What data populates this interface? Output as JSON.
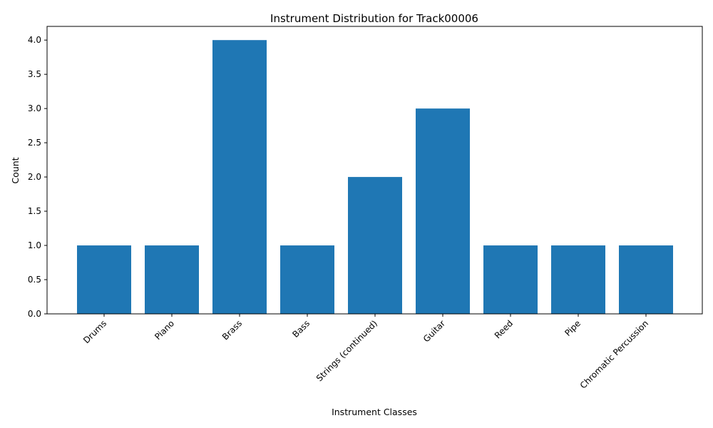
{
  "chart_data": {
    "type": "bar",
    "title": "Instrument Distribution for Track00006",
    "xlabel": "Instrument Classes",
    "ylabel": "Count",
    "categories": [
      "Drums",
      "Piano",
      "Brass",
      "Bass",
      "Strings (continued)",
      "Guitar",
      "Reed",
      "Pipe",
      "Chromatic Percussion"
    ],
    "values": [
      1,
      1,
      4,
      1,
      2,
      3,
      1,
      1,
      1
    ],
    "ylim": [
      0,
      4.2
    ],
    "yticks": [
      "0.0",
      "0.5",
      "1.0",
      "1.5",
      "2.0",
      "2.5",
      "3.0",
      "3.5",
      "4.0"
    ],
    "bar_color": "#1f77b4",
    "grid": false,
    "legend": "none"
  }
}
